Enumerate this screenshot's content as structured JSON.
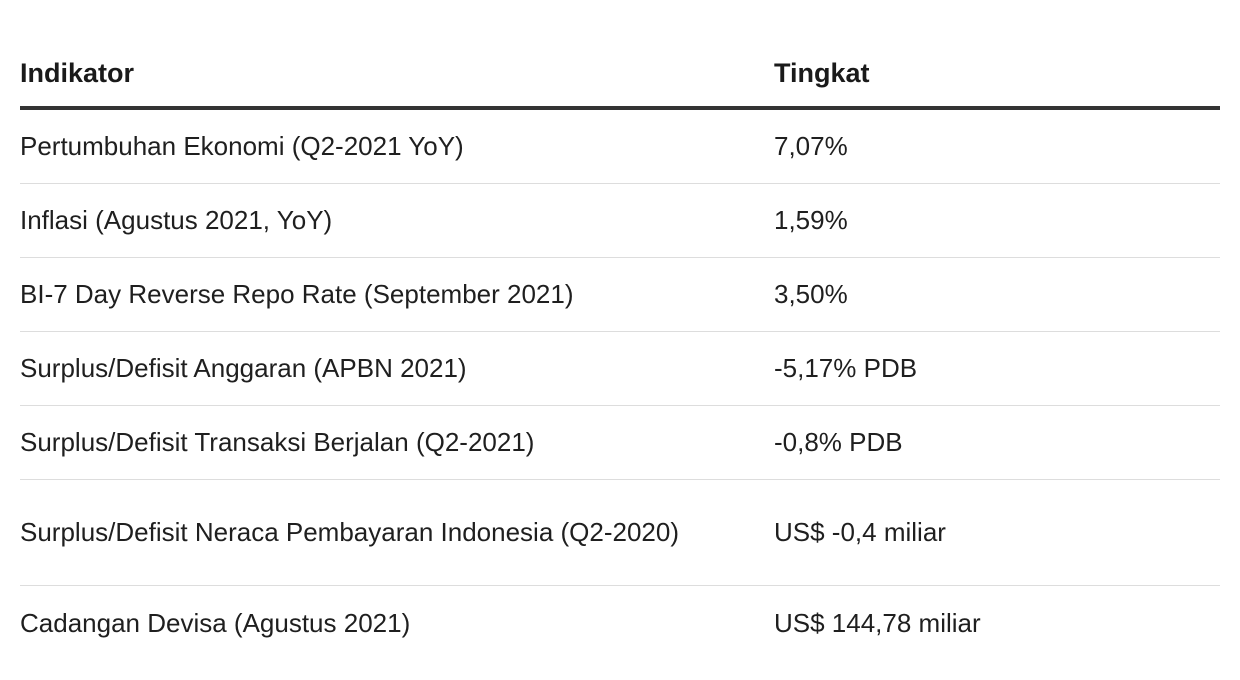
{
  "table": {
    "headers": [
      "Indikator",
      "Tingkat"
    ],
    "rows": [
      {
        "indicator": "Pertumbuhan Ekonomi (Q2-2021 YoY)",
        "value": "7,07%"
      },
      {
        "indicator": "Inflasi (Agustus 2021, YoY)",
        "value": "1,59%"
      },
      {
        "indicator": "BI-7 Day Reverse Repo Rate (September 2021)",
        "value": "3,50%"
      },
      {
        "indicator": "Surplus/Defisit Anggaran (APBN 2021)",
        "value": "-5,17% PDB"
      },
      {
        "indicator": "Surplus/Defisit Transaksi Berjalan (Q2-2021)",
        "value": "-0,8% PDB"
      },
      {
        "indicator": "Surplus/Defisit Neraca Pembayaran Indonesia (Q2-2020)",
        "value": "US$ -0,4 miliar"
      },
      {
        "indicator": "Cadangan Devisa (Agustus 2021)",
        "value": "US$ 144,78 miliar"
      }
    ]
  }
}
